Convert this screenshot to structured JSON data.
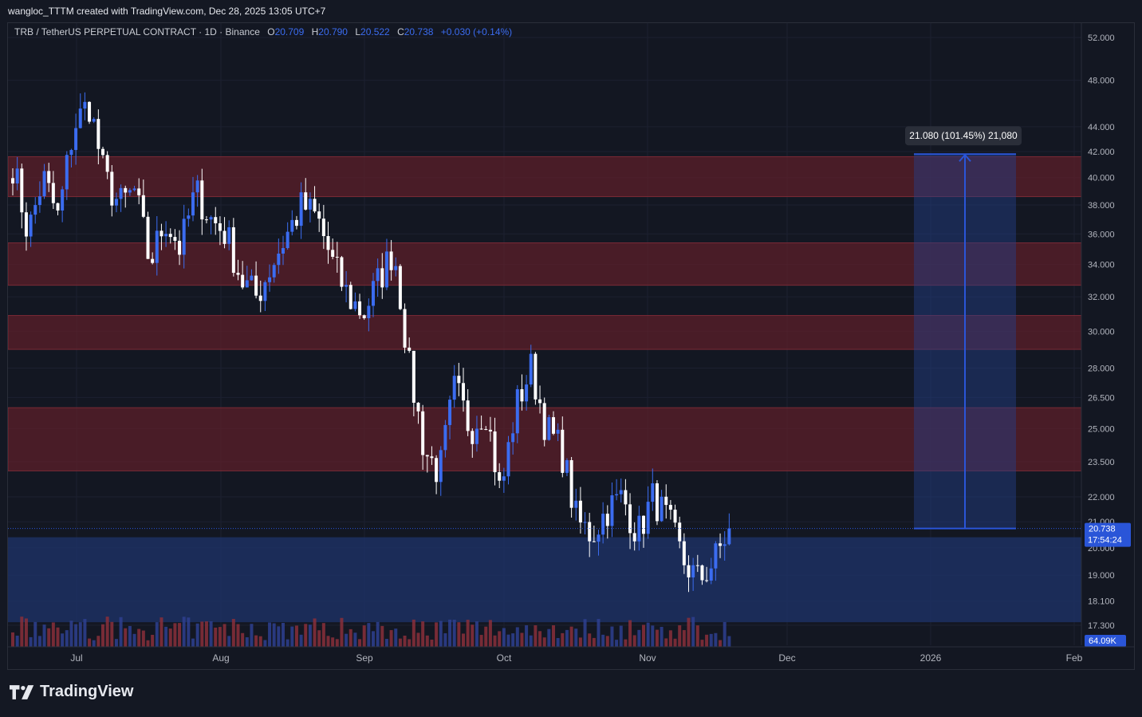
{
  "header": {
    "caption": "wangloc_TTTM created with TradingView.com, Dec 28, 2025 13:05 UTC+7"
  },
  "legend": {
    "symbol": "TRB / TetherUS PERPETUAL CONTRACT · 1D · Binance",
    "open_label": "O",
    "open": "20.709",
    "high_label": "H",
    "high": "20.790",
    "low_label": "L",
    "low": "20.522",
    "close_label": "C",
    "close": "20.738",
    "change": "+0.030 (+0.14%)"
  },
  "price_badge": {
    "price": "20.738",
    "countdown": "17:54:24"
  },
  "volume_badge": {
    "value": "64.09K"
  },
  "measure_label": "21.080 (101.45%) 21,080",
  "brand": {
    "name": "TradingView"
  },
  "colors": {
    "up": "#3b6cf0",
    "down": "#ffffff",
    "zone_red": "#5c1f2a",
    "zone_blue": "#1e3266",
    "measure": "#2a55d8",
    "bg": "#131722"
  },
  "chart_data": {
    "type": "candlestick",
    "y_axis_ticks": [
      "52.000",
      "48.000",
      "44.000",
      "42.000",
      "40.000",
      "38.000",
      "36.000",
      "34.000",
      "32.000",
      "30.000",
      "28.000",
      "26.500",
      "25.000",
      "23.500",
      "22.000",
      "21.000",
      "20.000",
      "19.000",
      "18.100",
      "17.300"
    ],
    "x_axis_labels": [
      "Jul",
      "Aug",
      "Sep",
      "Oct",
      "Nov",
      "Dec",
      "2026",
      "Feb"
    ],
    "resistance_zones": [
      [
        38.6,
        41.6
      ],
      [
        32.7,
        35.4
      ],
      [
        29.0,
        30.9
      ],
      [
        23.1,
        26.0
      ]
    ],
    "support_zone": [
      17.4,
      20.4
    ],
    "measure": {
      "from": 20.738,
      "to": 41.8,
      "label": "21.080 (101.45%) 21,080"
    },
    "last_close": 20.738,
    "waypoints_close": [
      41,
      36,
      40,
      37,
      44,
      46,
      40,
      38,
      39,
      34,
      37,
      35,
      39,
      37,
      36,
      33,
      32,
      34,
      36,
      38,
      37,
      34,
      32,
      31,
      33,
      35,
      28,
      24,
      23,
      27,
      25,
      26,
      22,
      26,
      28,
      25,
      24,
      21,
      20.5,
      21.5,
      22,
      20.5,
      22,
      21,
      19.5,
      18.8,
      19.5,
      20.7
    ],
    "volume_badge": "64.09K"
  }
}
